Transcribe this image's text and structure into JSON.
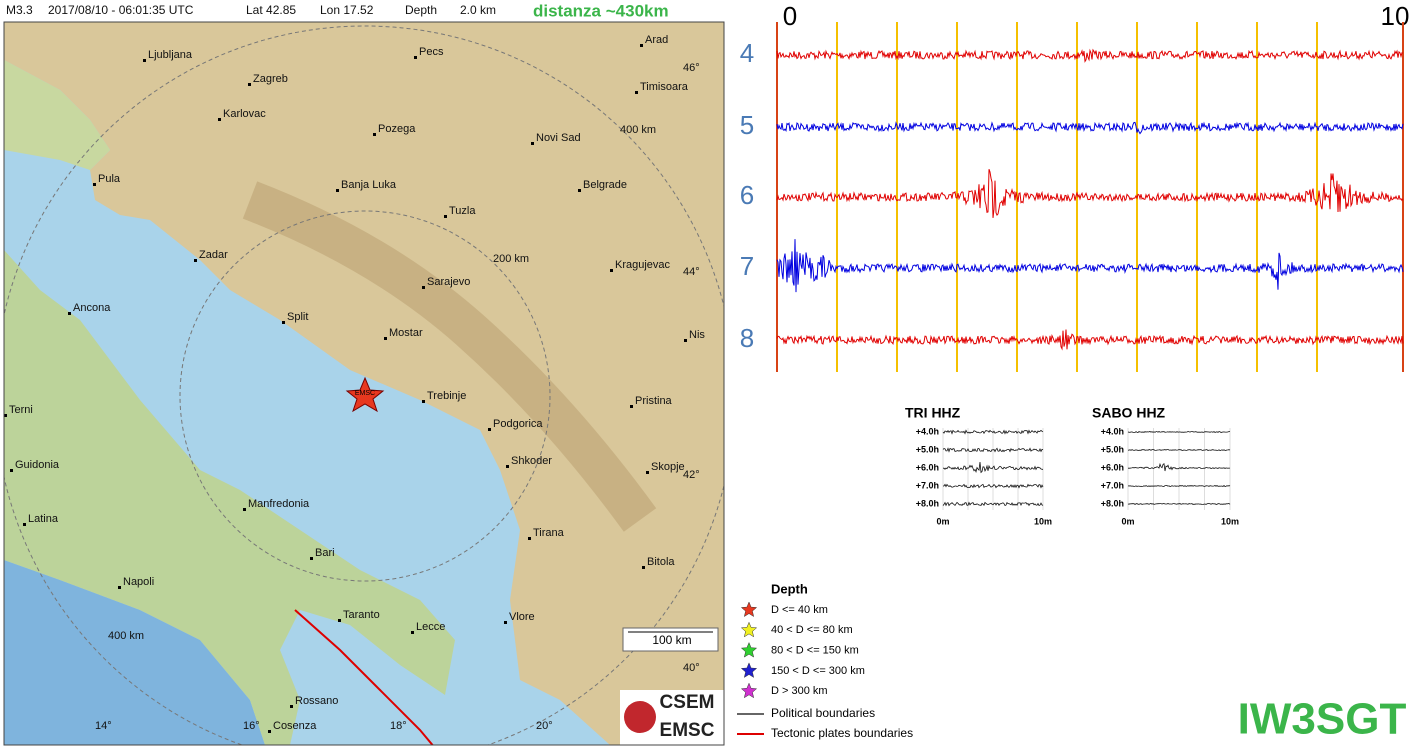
{
  "header": {
    "magnitude": "M3.3",
    "datetime": "2017/08/10 - 06:01:35 UTC",
    "lat": "Lat 42.85",
    "lon": "Lon 17.52",
    "depth_label": "Depth",
    "depth": "2.0 km",
    "distance": "distanza ~430km"
  },
  "map": {
    "cities": [
      "Ljubljana",
      "Pecs",
      "Arad",
      "Zagreb",
      "Timisoara",
      "Karlovac",
      "Pozega",
      "Novi Sad",
      "Pula",
      "Banja Luka",
      "Belgrade",
      "Tuzla",
      "Zadar",
      "Kragujevac",
      "Sarajevo",
      "Ancona",
      "Split",
      "Mostar",
      "Nis",
      "Trebinje",
      "Pristina",
      "Terni",
      "Podgorica",
      "Shkoder",
      "Skopje",
      "Guidonia",
      "Manfredonia",
      "Latina",
      "Tirana",
      "Bari",
      "Bitola",
      "Napoli",
      "Taranto",
      "Lecce",
      "Vlore",
      "Rossano",
      "Cosenza"
    ],
    "lat_labels": [
      "46°",
      "44°",
      "42°",
      "40°"
    ],
    "lon_labels": [
      "14°",
      "16°",
      "18°",
      "20°"
    ],
    "ring_labels": [
      "400 km",
      "200 km",
      "400 km"
    ],
    "epicenter_label": "EMSC",
    "scale": "100 km",
    "logo": [
      "CSEM",
      "EMSC"
    ]
  },
  "seismogram": {
    "start": "0",
    "end": "10",
    "rows": [
      "4",
      "5",
      "6",
      "7",
      "8"
    ]
  },
  "stations": [
    {
      "name": "TRI HHZ",
      "rows": [
        "+4.0h",
        "+5.0h",
        "+6.0h",
        "+7.0h",
        "+8.0h"
      ],
      "x_start": "0m",
      "x_end": "10m"
    },
    {
      "name": "SABO HHZ",
      "rows": [
        "+4.0h",
        "+5.0h",
        "+6.0h",
        "+7.0h",
        "+8.0h"
      ],
      "x_start": "0m",
      "x_end": "10m"
    }
  ],
  "legend": {
    "title": "Depth",
    "items": [
      "D <= 40 km",
      "40 < D <= 80 km",
      "80 < D <= 150 km",
      "150 < D <= 300 km",
      "D > 300 km"
    ],
    "boundaries": [
      "Political boundaries",
      "Tectonic plates boundaries"
    ]
  },
  "callsign": "IW3SGT"
}
